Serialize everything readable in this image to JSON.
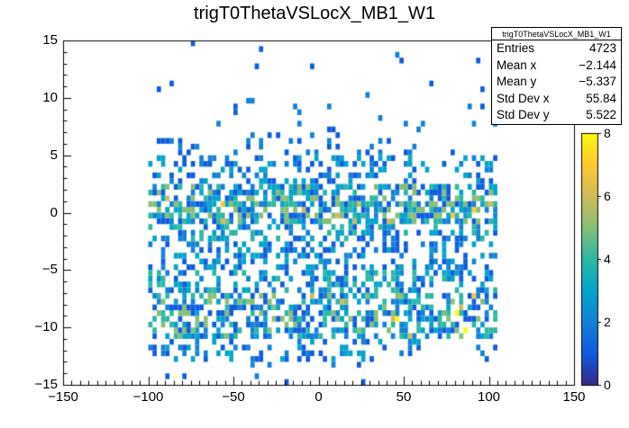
{
  "chart_data": {
    "type": "heatmap",
    "title": "trigT0ThetaVSLocX_MB1_W1",
    "xlabel": "",
    "ylabel": "",
    "x_axis": {
      "min": -150,
      "max": 150,
      "ticks": [
        -150,
        -100,
        -50,
        0,
        50,
        100,
        150
      ],
      "minor_step": 5
    },
    "y_axis": {
      "min": -15,
      "max": 15,
      "ticks": [
        -15,
        -10,
        -5,
        0,
        5,
        10,
        15
      ],
      "minor_step": 1
    },
    "z_axis": {
      "min": 0,
      "max": 8,
      "ticks": [
        0,
        2,
        4,
        6,
        8
      ]
    },
    "palette": [
      "#352a87",
      "#0f5cdd",
      "#1481d6",
      "#06a4ca",
      "#2eb7a4",
      "#87bf77",
      "#d1bb59",
      "#fec832",
      "#f9fb0e"
    ],
    "stats": {
      "title": "trigT0ThetaVSLocX_MB1_W1",
      "rows": [
        [
          "Entries",
          "4723"
        ],
        [
          "Mean x",
          "−2.144"
        ],
        [
          "Mean y",
          "−5.337"
        ],
        [
          "Std Dev x",
          "55.84"
        ],
        [
          "Std Dev y",
          "5.522"
        ]
      ]
    },
    "bins": {
      "x_width": 2.5,
      "y_width": 0.5,
      "x_range": [
        -100,
        105
      ]
    },
    "seed": 1337,
    "distribution_bands": [
      {
        "y": [
          7,
          15
        ],
        "density": 0.022,
        "v": [
          1,
          2
        ]
      },
      {
        "y": [
          5,
          7
        ],
        "density": 0.1,
        "v": [
          1,
          2
        ]
      },
      {
        "y": [
          2.5,
          5
        ],
        "density": 0.3,
        "v": [
          1,
          3
        ]
      },
      {
        "y": [
          1,
          2.5
        ],
        "density": 0.6,
        "v": [
          1,
          5
        ],
        "hot": 0.05,
        "hot_v": [
          6,
          8
        ],
        "hot_x": [
          -90,
          -35
        ]
      },
      {
        "y": [
          -1,
          1
        ],
        "density": 0.68,
        "v": [
          1,
          5
        ],
        "hot": 0.04,
        "hot_v": [
          6,
          7
        ]
      },
      {
        "y": [
          -2.5,
          -1
        ],
        "density": 0.45,
        "v": [
          1,
          4
        ]
      },
      {
        "y": [
          -5,
          -2.5
        ],
        "density": 0.32,
        "v": [
          1,
          3
        ]
      },
      {
        "y": [
          -7,
          -5
        ],
        "density": 0.45,
        "v": [
          1,
          4
        ]
      },
      {
        "y": [
          -8.5,
          -7
        ],
        "density": 0.55,
        "v": [
          1,
          5
        ],
        "hot": 0.03,
        "hot_v": [
          6,
          7
        ]
      },
      {
        "y": [
          -11,
          -8.5
        ],
        "density": 0.52,
        "v": [
          1,
          5
        ],
        "hot": 0.06,
        "hot_v": [
          6,
          8
        ],
        "hot_x": [
          20,
          95
        ]
      },
      {
        "y": [
          -13,
          -11
        ],
        "density": 0.26,
        "v": [
          1,
          3
        ],
        "x": [
          -100,
          62.5
        ]
      },
      {
        "y": [
          -13,
          -11.5
        ],
        "density": 0.18,
        "v": [
          1,
          2
        ],
        "x": [
          90,
          105
        ]
      },
      {
        "y": [
          -14.5,
          -13
        ],
        "density": 0.05,
        "v": [
          1,
          2
        ],
        "x": [
          -100,
          30
        ]
      },
      {
        "y": [
          -15,
          -14.5
        ],
        "density": 0.03,
        "v": [
          1,
          1
        ],
        "x": [
          -60,
          40
        ]
      }
    ]
  }
}
